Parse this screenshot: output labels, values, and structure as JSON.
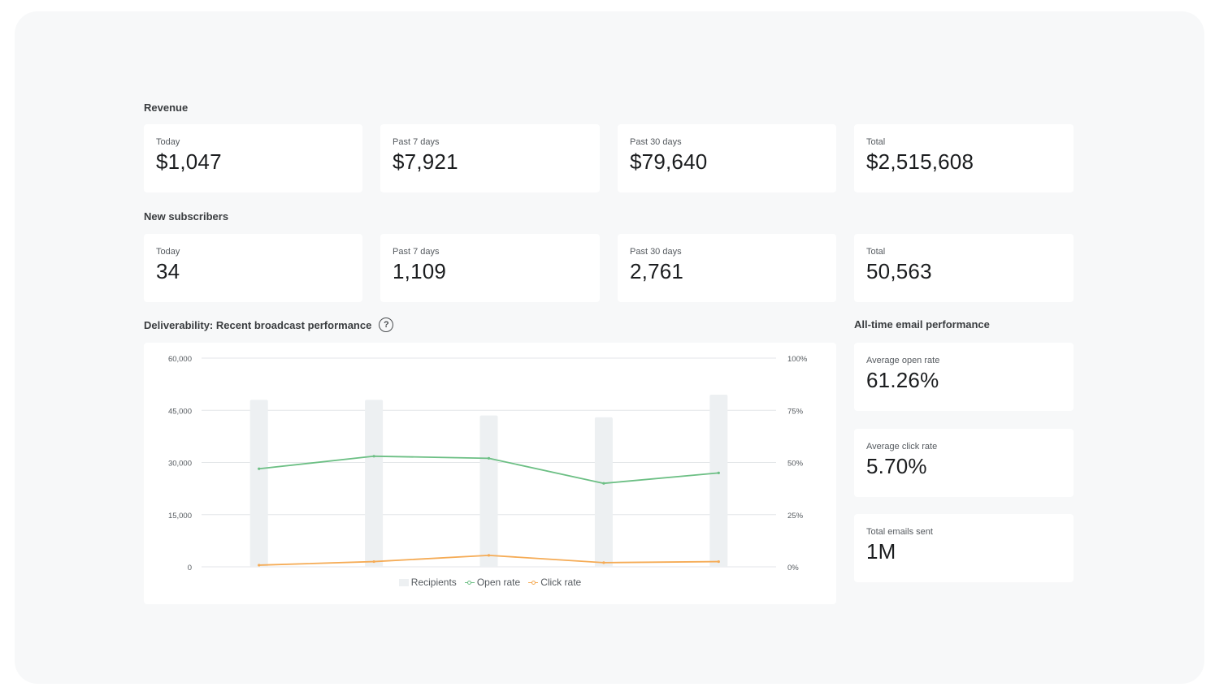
{
  "revenue": {
    "title": "Revenue",
    "cards": [
      {
        "label": "Today",
        "value": "$1,047"
      },
      {
        "label": "Past 7 days",
        "value": "$7,921"
      },
      {
        "label": "Past 30 days",
        "value": "$79,640"
      },
      {
        "label": "Total",
        "value": "$2,515,608"
      }
    ]
  },
  "subscribers": {
    "title": "New subscribers",
    "cards": [
      {
        "label": "Today",
        "value": "34"
      },
      {
        "label": "Past 7 days",
        "value": "1,109"
      },
      {
        "label": "Past 30 days",
        "value": "2,761"
      },
      {
        "label": "Total",
        "value": "50,563"
      }
    ]
  },
  "deliverability": {
    "title": "Deliverability: Recent broadcast performance",
    "help_icon": "question-circle-icon"
  },
  "alltime": {
    "title": "All-time email performance",
    "cards": [
      {
        "label": "Average open rate",
        "value": "61.26%"
      },
      {
        "label": "Average click rate",
        "value": "5.70%"
      },
      {
        "label": "Total emails sent",
        "value": "1M"
      }
    ]
  },
  "colors": {
    "panel_bg": "#f7f8f9",
    "recipients": "#edf0f2",
    "open_rate": "#6cbf84",
    "click_rate": "#f5ab55",
    "grid": "#e3e6e8"
  },
  "chart_data": {
    "type": "bar",
    "categories": [
      "",
      "",
      "",
      "",
      ""
    ],
    "left_axis": {
      "ticks": [
        "60,000",
        "45,000",
        "30,000",
        "15,000",
        "0"
      ],
      "ylim": [
        0,
        60000
      ]
    },
    "right_axis": {
      "ticks": [
        "100%",
        "75%",
        "50%",
        "25%",
        "0%"
      ],
      "ylim": [
        0,
        100
      ]
    },
    "series": [
      {
        "name": "Recipients",
        "kind": "bar",
        "axis": "left",
        "values": [
          48000,
          48000,
          43500,
          43000,
          49500
        ]
      },
      {
        "name": "Open rate",
        "kind": "line",
        "axis": "right",
        "values": [
          47,
          53,
          52,
          40,
          45
        ]
      },
      {
        "name": "Click rate",
        "kind": "line",
        "axis": "right",
        "values": [
          0.8,
          2.5,
          5.5,
          2,
          2.5
        ]
      }
    ],
    "grid": true,
    "legend": "bottom-center"
  }
}
